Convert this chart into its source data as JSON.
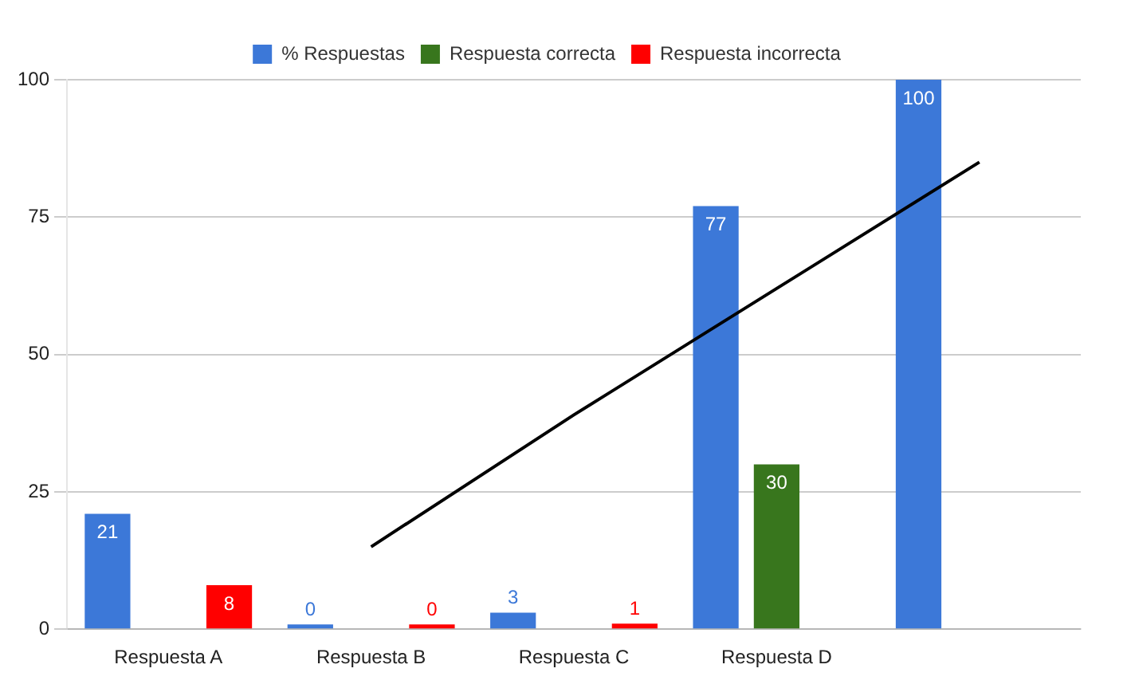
{
  "chart_data": {
    "type": "bar",
    "categories": [
      "Respuesta A",
      "Respuesta B",
      "Respuesta C",
      "Respuesta D",
      null
    ],
    "series": [
      {
        "name": "% Respuestas",
        "color": "#3c78d8",
        "values": [
          21,
          0,
          3,
          77,
          100
        ],
        "value_labels": [
          "21",
          "0",
          "3",
          "77",
          "100"
        ]
      },
      {
        "name": "Respuesta correcta",
        "color": "#38761d",
        "values": [
          null,
          null,
          null,
          30,
          null
        ],
        "value_labels": [
          null,
          null,
          null,
          "30",
          null
        ]
      },
      {
        "name": "Respuesta incorrecta",
        "color": "#ff0000",
        "values": [
          8,
          0,
          1,
          null,
          null
        ],
        "value_labels": [
          "8",
          "0",
          "1",
          null,
          null
        ]
      },
      {
        "type": "line",
        "color": "#000000",
        "values": [
          null,
          15,
          39,
          62,
          85
        ]
      }
    ],
    "ylim": [
      0,
      100
    ],
    "yticks": [
      0,
      25,
      50,
      75,
      100
    ],
    "grid": "y",
    "legend": "top",
    "marker": "none"
  }
}
